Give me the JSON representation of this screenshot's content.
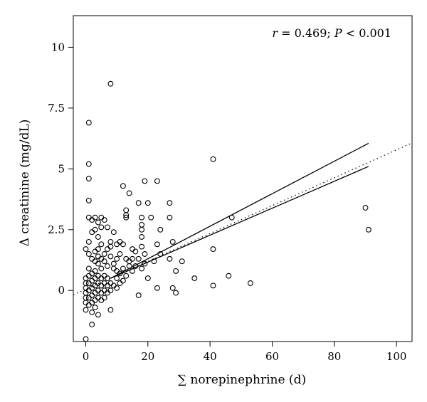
{
  "chart_data": {
    "type": "scatter",
    "title": "",
    "annotation": {
      "r_symbol": "r",
      "r_text": " = 0.469; ",
      "p_symbol": "P",
      "p_text": " < 0.001"
    },
    "xlabel": "∑ norepinephrine (d)",
    "ylabel": "Δ creatinine (mg/dL)",
    "xlim": [
      -4,
      105
    ],
    "ylim": [
      -2.1,
      11.3
    ],
    "x_ticks": [
      0,
      20,
      40,
      60,
      80,
      100
    ],
    "x_tick_labels": [
      "0",
      "20",
      "40",
      "60",
      "80",
      "100"
    ],
    "y_ticks": [
      0,
      2.5,
      5,
      7.5,
      10
    ],
    "y_tick_labels": [
      "0",
      "2.5",
      "5",
      "7.5",
      "10"
    ],
    "grid": false,
    "legend": "none",
    "colors": {
      "points": "#000000",
      "lines": "#000000",
      "background": "#ffffff"
    },
    "regression": {
      "intercept": 0.05,
      "slope": 0.0573,
      "x_range": [
        -4,
        105
      ],
      "style": "dotted"
    },
    "confidence_bands": {
      "style": "solid",
      "x_range": [
        8,
        91
      ],
      "upper": [
        [
          8,
          0.5
        ],
        [
          91,
          6.05
        ]
      ],
      "lower": [
        [
          8,
          0.5
        ],
        [
          91,
          5.1
        ]
      ]
    },
    "points": [
      [
        0,
        -2.0
      ],
      [
        1,
        6.9
      ],
      [
        1,
        5.2
      ],
      [
        1,
        4.6
      ],
      [
        1,
        3.7
      ],
      [
        1,
        3.0
      ],
      [
        8,
        8.5
      ],
      [
        3,
        3.0
      ],
      [
        5,
        3.0
      ],
      [
        4,
        2.8
      ],
      [
        3,
        2.5
      ],
      [
        4,
        2.2
      ],
      [
        7,
        2.6
      ],
      [
        8,
        2.0
      ],
      [
        9,
        2.4
      ],
      [
        10,
        1.9
      ],
      [
        11,
        2.0
      ],
      [
        12,
        1.9
      ],
      [
        12,
        4.3
      ],
      [
        14,
        4.0
      ],
      [
        17,
        3.6
      ],
      [
        19,
        4.5
      ],
      [
        20,
        3.6
      ],
      [
        23,
        4.5
      ],
      [
        13,
        3.3
      ],
      [
        13,
        3.1
      ],
      [
        13,
        3.0
      ],
      [
        18,
        3.0
      ],
      [
        18,
        2.7
      ],
      [
        18,
        2.5
      ],
      [
        18,
        2.2
      ],
      [
        15,
        1.7
      ],
      [
        18,
        1.8
      ],
      [
        21,
        3.0
      ],
      [
        24,
        2.5
      ],
      [
        27,
        3.6
      ],
      [
        27,
        3.0
      ],
      [
        23,
        1.9
      ],
      [
        24,
        1.5
      ],
      [
        22,
        1.2
      ],
      [
        27,
        1.3
      ],
      [
        31,
        1.2
      ],
      [
        28,
        2.0
      ],
      [
        29,
        0.8
      ],
      [
        35,
        0.5
      ],
      [
        41,
        5.4
      ],
      [
        41,
        1.7
      ],
      [
        47,
        3.0
      ],
      [
        46,
        0.6
      ],
      [
        41,
        0.2
      ],
      [
        53,
        0.3
      ],
      [
        28,
        0.1
      ],
      [
        29,
        -0.1
      ],
      [
        23,
        0.1
      ],
      [
        17,
        -0.2
      ],
      [
        20,
        0.5
      ],
      [
        14,
        1.2
      ],
      [
        15,
        0.8
      ],
      [
        13,
        0.6
      ],
      [
        12,
        0.4
      ],
      [
        11,
        0.7
      ],
      [
        10,
        0.5
      ],
      [
        9,
        0.9
      ],
      [
        8,
        -0.8
      ],
      [
        4,
        -1.0
      ],
      [
        2,
        -1.4
      ],
      [
        90,
        3.4
      ],
      [
        91,
        2.5
      ],
      [
        0,
        1.7
      ],
      [
        1,
        1.5
      ],
      [
        1,
        2.0
      ],
      [
        2,
        2.4
      ],
      [
        2,
        1.3
      ],
      [
        3,
        1.6
      ],
      [
        4,
        1.7
      ],
      [
        5,
        1.9
      ],
      [
        6,
        1.5
      ],
      [
        6,
        1.2
      ],
      [
        7,
        1.0
      ],
      [
        8,
        1.4
      ],
      [
        9,
        1.1
      ],
      [
        10,
        0.8
      ],
      [
        16,
        1.6
      ],
      [
        16,
        1.0
      ],
      [
        19,
        1.1
      ],
      [
        3,
        0.8
      ],
      [
        4,
        1.1
      ],
      [
        5,
        0.9
      ],
      [
        6,
        0.6
      ],
      [
        7,
        0.5
      ],
      [
        0,
        0.5
      ],
      [
        0,
        0.3
      ],
      [
        0,
        0.1
      ],
      [
        0,
        -0.1
      ],
      [
        0,
        -0.3
      ],
      [
        0,
        -0.5
      ],
      [
        0,
        -0.8
      ],
      [
        1,
        0.9
      ],
      [
        1,
        0.6
      ],
      [
        1,
        0.3
      ],
      [
        1,
        0.0
      ],
      [
        1,
        -0.3
      ],
      [
        1,
        -0.6
      ],
      [
        2,
        0.7
      ],
      [
        2,
        0.4
      ],
      [
        2,
        0.1
      ],
      [
        2,
        -0.2
      ],
      [
        2,
        -0.5
      ],
      [
        2,
        -0.9
      ],
      [
        3,
        0.5
      ],
      [
        3,
        0.2
      ],
      [
        3,
        -0.1
      ],
      [
        3,
        -0.4
      ],
      [
        3,
        -0.7
      ],
      [
        4,
        0.6
      ],
      [
        4,
        0.3
      ],
      [
        4,
        0.0
      ],
      [
        4,
        -0.3
      ],
      [
        5,
        0.5
      ],
      [
        5,
        0.2
      ],
      [
        5,
        -0.1
      ],
      [
        5,
        -0.4
      ],
      [
        6,
        0.3
      ],
      [
        6,
        0.0
      ],
      [
        6,
        -0.3
      ],
      [
        7,
        0.2
      ],
      [
        7,
        -0.1
      ],
      [
        8,
        0.3
      ],
      [
        8,
        0.0
      ],
      [
        9,
        0.2
      ],
      [
        10,
        0.1
      ],
      [
        11,
        0.3
      ],
      [
        12,
        0.9
      ],
      [
        13,
        1.3
      ],
      [
        14,
        1.0
      ],
      [
        15,
        1.3
      ],
      [
        17,
        1.3
      ],
      [
        18,
        0.9
      ],
      [
        19,
        1.5
      ],
      [
        11,
        1.5
      ],
      [
        10,
        1.3
      ],
      [
        2,
        2.9
      ],
      [
        5,
        2.6
      ],
      [
        6,
        2.9
      ],
      [
        4,
        1.4
      ],
      [
        3,
        1.2
      ],
      [
        5,
        1.3
      ],
      [
        7,
        1.7
      ],
      [
        8,
        1.8
      ]
    ]
  }
}
